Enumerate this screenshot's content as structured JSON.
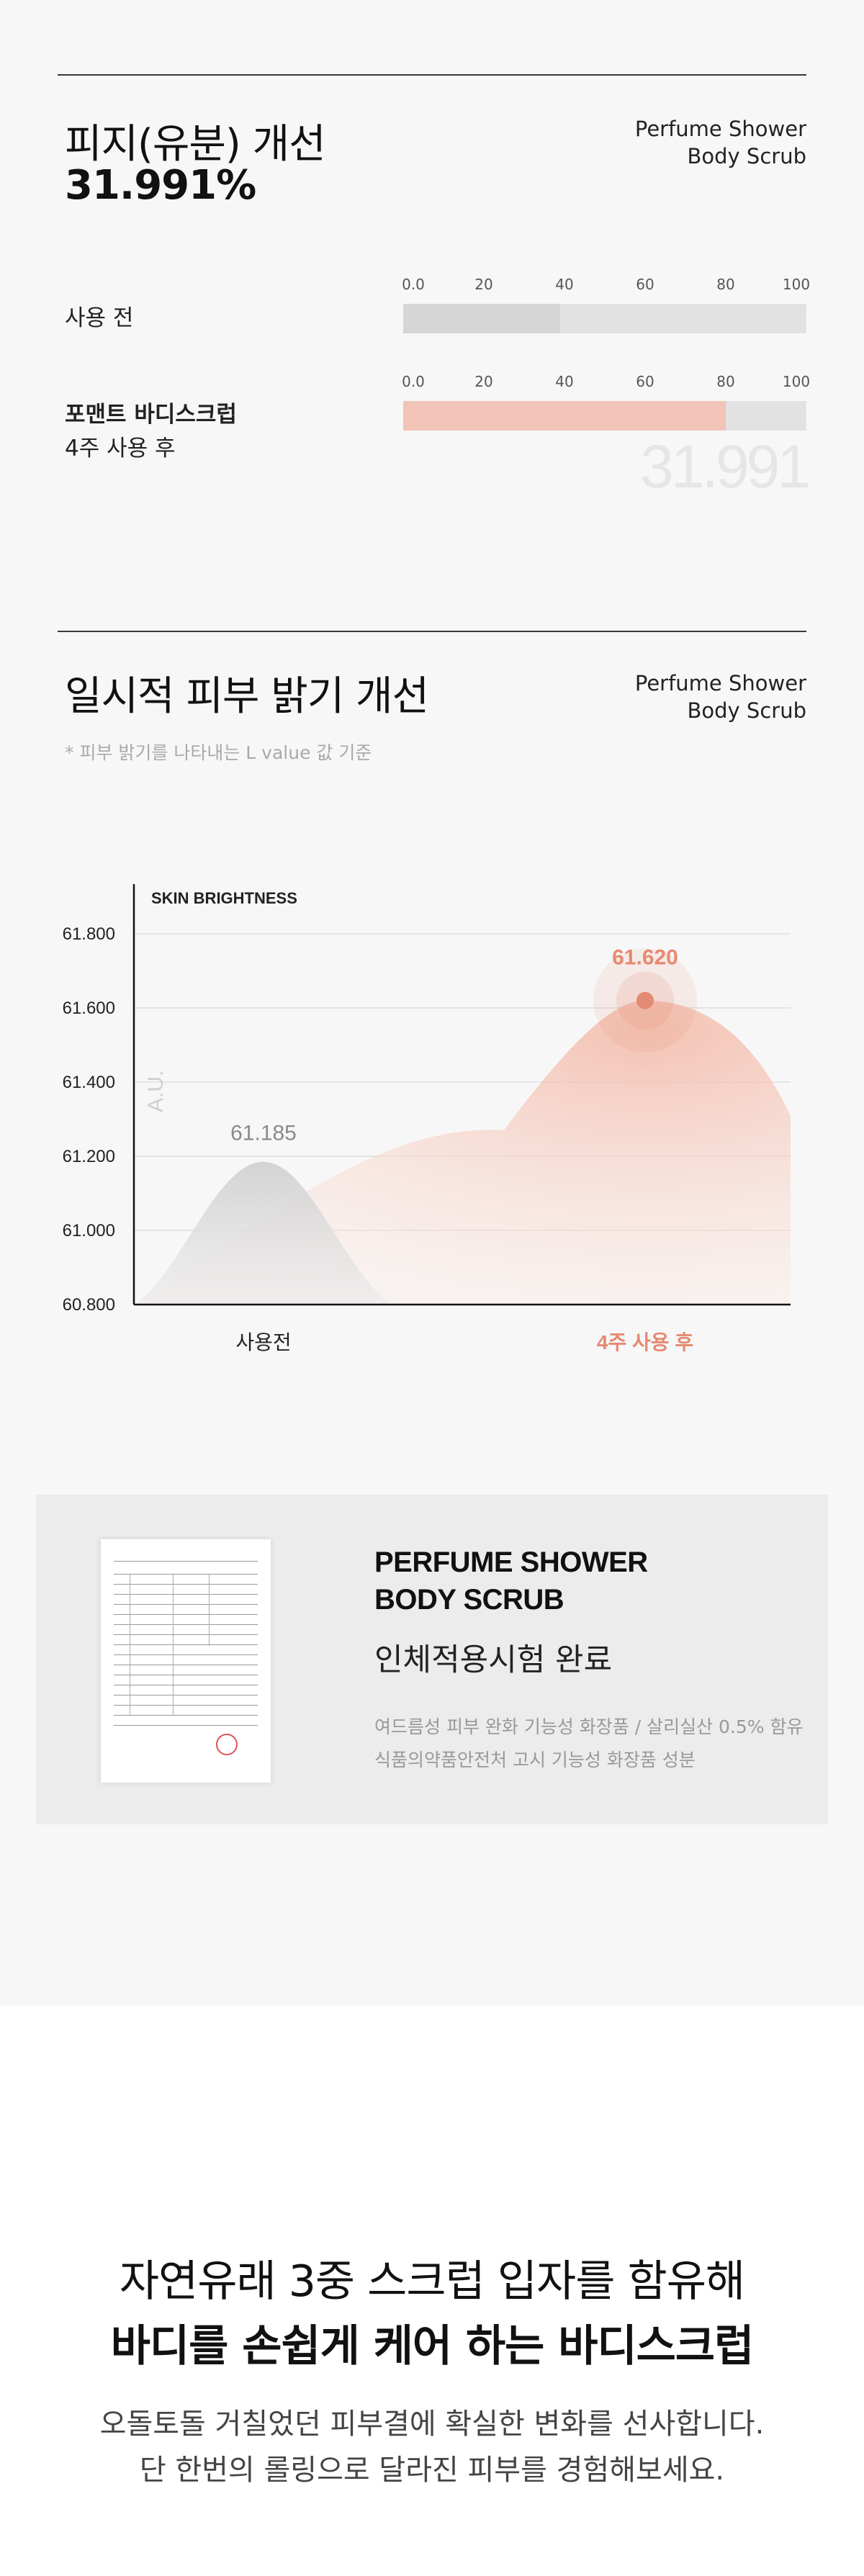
{
  "sebum": {
    "title": "피지(유분) 개선",
    "percent": "31.991%",
    "brand_line1": "Perfume Shower",
    "brand_line2": "Body Scrub",
    "before_label": "사용 전",
    "product_label": "포맨트 바디스크럽",
    "after_label": "4주 사용 후",
    "ghost_value": "31.991",
    "axis_ticks": [
      "0.0",
      "20",
      "40",
      "60",
      "80",
      "100"
    ],
    "before_value": 39,
    "after_value": 80,
    "before_color": "#d6d6d6",
    "after_color": "#f2c3b7"
  },
  "brightness": {
    "title": "일시적 피부 밝기 개선",
    "brand_line1": "Perfume Shower",
    "brand_line2": "Body Scrub",
    "note": "* 피부 밝기를 나타내는 L value 값 기준"
  },
  "chart_data": {
    "type": "area",
    "title": "SKIN BRIGHTNESS",
    "ylabel": "A.U.",
    "xlabel": "",
    "categories": [
      "사용전",
      "4주 사용 후"
    ],
    "values": [
      61.185,
      61.62
    ],
    "value_labels": [
      "61.185",
      "61.620"
    ],
    "yticks": [
      "61.800",
      "61.600",
      "61.400",
      "61.200",
      "61.000",
      "60.800"
    ],
    "ylim": [
      60.8,
      61.8
    ],
    "grid": true,
    "accent_color": "#e58a72",
    "before_color": "#cccccc"
  },
  "trial": {
    "brand_line1": "PERFUME SHOWER",
    "brand_line2": "BODY SCRUB",
    "completed": "인체적용시험 완료",
    "desc_line1": "여드름성 피부 완화 기능성 화장품 / 살리실산 0.5% 함유",
    "desc_line2": "식품의약품안전처 고시 기능성 화장품 성분"
  },
  "closing": {
    "line1": "자연유래 3중 스크럽 입자를 함유해",
    "line2": "바디를 손쉽게 케어 하는 바디스크럽",
    "sub1": "오돌토돌 거칠었던 피부결에 확실한 변화를 선사합니다.",
    "sub2": "단 한번의 롤링으로 달라진 피부를 경험해보세요."
  }
}
